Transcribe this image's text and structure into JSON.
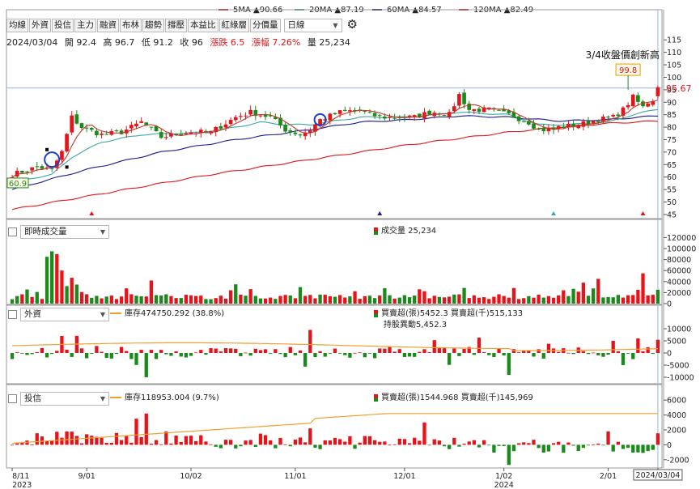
{
  "moving_averages": [
    {
      "label": "5MA",
      "arrow": "▲",
      "value": "90.66",
      "color": "#e3151a"
    },
    {
      "label": "20MA",
      "arrow": "▲",
      "value": "87.19",
      "color": "#3aa8a0"
    },
    {
      "label": "60MA",
      "arrow": "▲",
      "value": "84.57",
      "color": "#1c1c8c"
    },
    {
      "label": "120MA",
      "arrow": "▲",
      "value": "82.49",
      "color": "#e3151a"
    }
  ],
  "tabs": [
    "均線",
    "外資",
    "投信",
    "主力",
    "融資",
    "布林",
    "趨勢",
    "撐壓",
    "本益比",
    "紅綠層",
    "分價量"
  ],
  "period": "日線",
  "quote": {
    "date": "2024/03/04",
    "open": "開 92.4",
    "high": "高 96.7",
    "low": "低 91.2",
    "close": "收 96",
    "change": "漲跌 6.5",
    "pct": "漲幅 7.26%",
    "volume": "量 25,234"
  },
  "panels": {
    "volume": {
      "selector": "即時成交量",
      "legend": "成交量 25,234"
    },
    "foreign": {
      "selector": "外資",
      "inventory": "庫存474750.292 (38.8%)",
      "net": "買賣超(張)5452.3 買賣超(千)515,133",
      "holding": "持股異動5,452.3"
    },
    "trust": {
      "selector": "投信",
      "inventory": "庫存118953.004 (9.7%)",
      "net": "買賣超(張)1544.968 買賣超(千)145,969"
    }
  },
  "annotations": {
    "new_high": "3/4收盤價創新高",
    "high_marker": "99.8",
    "low_marker": "60.9",
    "last_price": "95.67"
  },
  "colors": {
    "up": "#e3151a",
    "down": "#1a8a1a",
    "ma20": "#3aa8a0",
    "ma60": "#1c1c8c",
    "ma120": "#e3151a",
    "inventory": "#f0a030",
    "crosshair": "#8fb4e6"
  },
  "chart_data": [
    {
      "type": "candlestick",
      "title": "",
      "x_tick_labels": [
        "8/11",
        "9/01",
        "10/02",
        "11/01",
        "12/01",
        "1/02",
        "2/01",
        "2024/03/04"
      ],
      "x_year_labels": [
        "2023",
        "2024"
      ],
      "y_ticks": [
        45,
        50,
        55,
        60,
        65,
        70,
        75,
        80,
        85,
        90,
        95,
        100,
        105,
        110,
        115
      ],
      "ylim": [
        44,
        118
      ],
      "close_path": [
        [
          0,
          61
        ],
        [
          5,
          64
        ],
        [
          8,
          63
        ],
        [
          10,
          70
        ],
        [
          12,
          84
        ],
        [
          14,
          80
        ],
        [
          18,
          77
        ],
        [
          22,
          78
        ],
        [
          26,
          82
        ],
        [
          30,
          76
        ],
        [
          35,
          78
        ],
        [
          40,
          78
        ],
        [
          45,
          84
        ],
        [
          48,
          86
        ],
        [
          52,
          84
        ],
        [
          55,
          79
        ],
        [
          58,
          77
        ],
        [
          60,
          79
        ],
        [
          62,
          83
        ],
        [
          66,
          86
        ],
        [
          70,
          87
        ],
        [
          72,
          85
        ],
        [
          75,
          84
        ],
        [
          78,
          84
        ],
        [
          81,
          84
        ],
        [
          84,
          86
        ],
        [
          86,
          86
        ],
        [
          88,
          85
        ],
        [
          90,
          93
        ],
        [
          92,
          87
        ],
        [
          96,
          87
        ],
        [
          100,
          85
        ],
        [
          104,
          82
        ],
        [
          106,
          79
        ],
        [
          109,
          79
        ],
        [
          110,
          80
        ],
        [
          114,
          81
        ],
        [
          118,
          83
        ],
        [
          121,
          84
        ],
        [
          123,
          87
        ],
        [
          125,
          92
        ],
        [
          127,
          88
        ],
        [
          128,
          90
        ],
        [
          129,
          91
        ],
        [
          130,
          96
        ]
      ],
      "n_days": 131,
      "ma20_path": [
        [
          0,
          58
        ],
        [
          8,
          61
        ],
        [
          12,
          68
        ],
        [
          18,
          74
        ],
        [
          26,
          77
        ],
        [
          40,
          78
        ],
        [
          50,
          82
        ],
        [
          55,
          81
        ],
        [
          60,
          81
        ],
        [
          70,
          84
        ],
        [
          80,
          84
        ],
        [
          90,
          86
        ],
        [
          100,
          85
        ],
        [
          106,
          81
        ],
        [
          112,
          81
        ],
        [
          120,
          82
        ],
        [
          125,
          85
        ],
        [
          130,
          87.2
        ]
      ],
      "ma60_path": [
        [
          0,
          55
        ],
        [
          15,
          63
        ],
        [
          30,
          70
        ],
        [
          45,
          75
        ],
        [
          60,
          79
        ],
        [
          70,
          82
        ],
        [
          80,
          83
        ],
        [
          90,
          84.5
        ],
        [
          100,
          84
        ],
        [
          110,
          82.5
        ],
        [
          120,
          83
        ],
        [
          130,
          84.6
        ]
      ],
      "ma120_path": [
        [
          0,
          47
        ],
        [
          20,
          54
        ],
        [
          40,
          61
        ],
        [
          60,
          67
        ],
        [
          80,
          73
        ],
        [
          100,
          78
        ],
        [
          110,
          80
        ],
        [
          120,
          81.5
        ],
        [
          130,
          82.5
        ]
      ],
      "annotations": [
        "3/4收盤價創新高",
        "99.8",
        "60.9",
        "95.67"
      ]
    },
    {
      "type": "bar",
      "title": "成交量",
      "y_ticks": [
        0,
        20000,
        40000,
        60000,
        80000,
        100000,
        120000
      ],
      "ylim": [
        0,
        125000
      ],
      "peaks": [
        [
          7,
          85000
        ],
        [
          8,
          95000
        ],
        [
          9,
          90000
        ],
        [
          10,
          60000
        ],
        [
          28,
          42000
        ],
        [
          45,
          35000
        ],
        [
          58,
          30000
        ],
        [
          82,
          26000
        ],
        [
          115,
          38000
        ],
        [
          118,
          45000
        ],
        [
          126,
          25000
        ],
        [
          127,
          55000
        ],
        [
          130,
          25234
        ]
      ],
      "baseline": 8000
    },
    {
      "type": "bar",
      "title": "外資",
      "y_ticks": [
        -10000,
        -5000,
        0,
        5000,
        10000
      ],
      "ylim": [
        -12000,
        12000
      ],
      "values_key": [
        [
          10,
          7000
        ],
        [
          27,
          -10000
        ],
        [
          60,
          9500
        ],
        [
          100,
          -9000
        ],
        [
          121,
          5000
        ],
        [
          123,
          -5000
        ],
        [
          126,
          6000
        ],
        [
          130,
          5452
        ]
      ],
      "inventory_pct": "38.8%"
    },
    {
      "type": "bar",
      "title": "投信",
      "y_ticks": [
        -2000,
        0,
        2000,
        4000,
        6000
      ],
      "ylim": [
        -3000,
        7000
      ],
      "values_key": [
        [
          25,
          3500
        ],
        [
          27,
          4200
        ],
        [
          50,
          1500
        ],
        [
          60,
          2200
        ],
        [
          83,
          3000
        ],
        [
          100,
          -2700
        ],
        [
          120,
          1800
        ],
        [
          130,
          1545
        ]
      ],
      "inventory_pct": "9.7%"
    }
  ]
}
